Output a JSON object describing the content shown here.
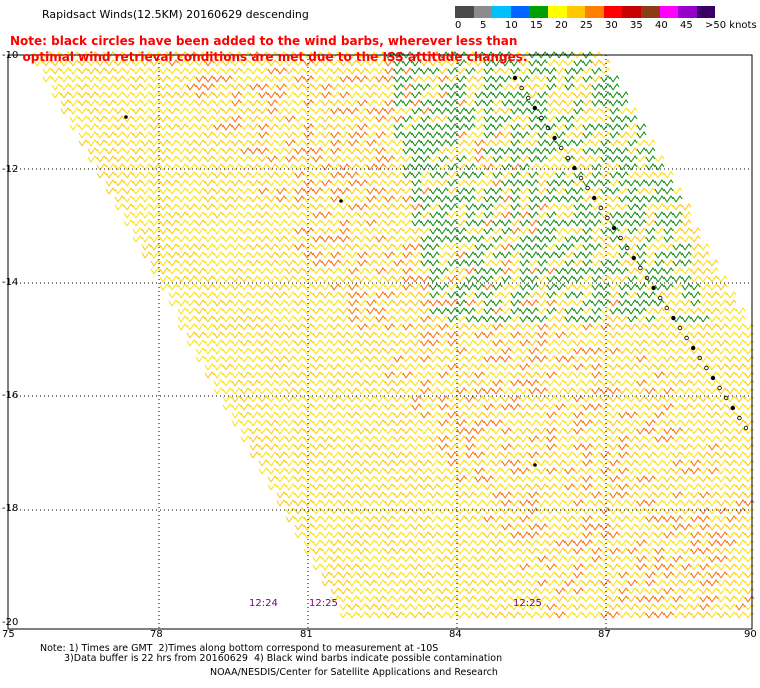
{
  "header": {
    "title": "Rapidsact Winds(12.5KM) 20160629 descending",
    "note_line1": "Note: black circles have been added to the wind barbs, wherever less than",
    "note_line2": "optimal wind retrieval conditions are met due to the ISS attitude changes."
  },
  "legend": {
    "colors": [
      "#4a4a4a",
      "#8c8c8c",
      "#00bfff",
      "#0064ff",
      "#00a000",
      "#ffff00",
      "#ffc800",
      "#ff7f00",
      "#ff0000",
      "#c80000",
      "#8c3c14",
      "#ff00ff",
      "#9600c8",
      "#3c0064"
    ],
    "labels": [
      "0",
      "5",
      "10",
      "15",
      "20",
      "25",
      "30",
      "35",
      "40",
      "45",
      ">50 knots"
    ]
  },
  "map": {
    "y_labels": [
      "-10",
      "-12",
      "-14",
      "-16",
      "-18",
      "-20"
    ],
    "x_labels": [
      "75",
      "78",
      "81",
      "84",
      "87",
      "90"
    ],
    "pass_times": [
      "12:24",
      "12:25",
      "12:25"
    ]
  },
  "footer": {
    "line1": "Note: 1) Times are GMT  2)Times along bottom correspond to measurement at -10S",
    "line2": "3)Data buffer is 22 hrs from 20160629  4) Black wind barbs indicate possible contamination",
    "credit": "NOAA/NESDIS/Center for Satellite Applications and Research"
  }
}
